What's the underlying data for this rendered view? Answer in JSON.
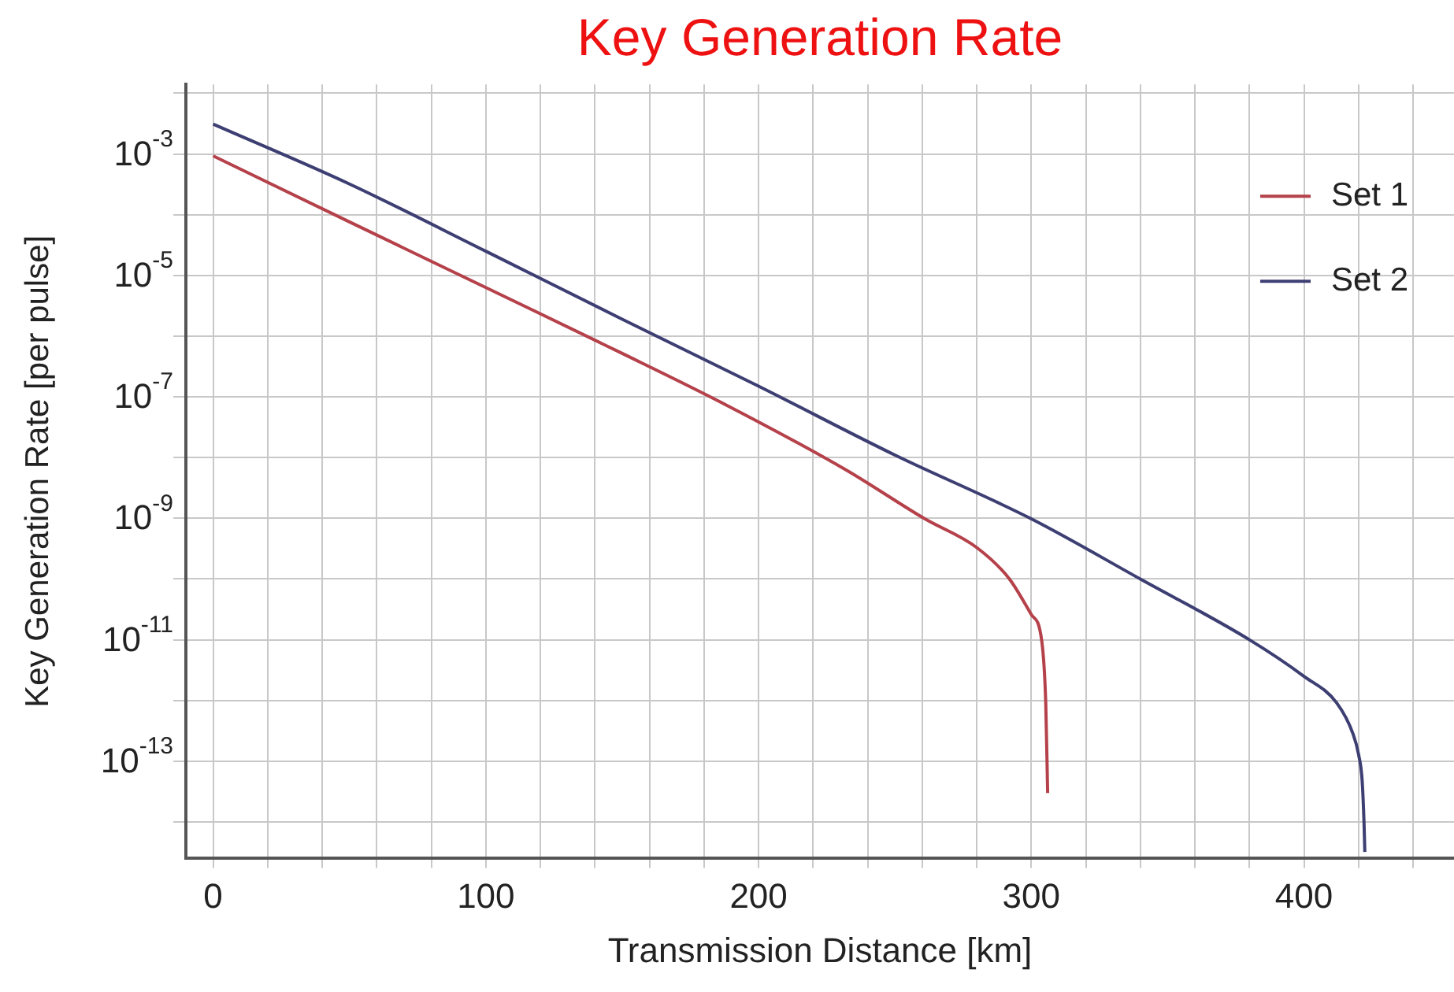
{
  "chart_data": {
    "type": "line",
    "title": "Key Generation Rate",
    "xlabel": "Transmission Distance [km]",
    "ylabel": "Key Generation Rate [per pulse]",
    "log": "y",
    "grid": true,
    "legend": "top right",
    "marker": "none",
    "line_style": "solid",
    "xlim": [
      -10,
      455
    ],
    "xticks": [
      0,
      {
        "value": 20,
        "label": null
      },
      {
        "value": 40,
        "label": null
      },
      {
        "value": 60,
        "label": null
      },
      {
        "value": 80,
        "label": null
      },
      100,
      {
        "value": 120,
        "label": null
      },
      {
        "value": 140,
        "label": null
      },
      {
        "value": 160,
        "label": null
      },
      {
        "value": 180,
        "label": null
      },
      200,
      {
        "value": 220,
        "label": null
      },
      {
        "value": 240,
        "label": null
      },
      {
        "value": 260,
        "label": null
      },
      {
        "value": 280,
        "label": null
      },
      300,
      {
        "value": 320,
        "label": null
      },
      {
        "value": 340,
        "label": null
      },
      {
        "value": 360,
        "label": null
      },
      {
        "value": 380,
        "label": null
      },
      400,
      {
        "value": 420,
        "label": null
      },
      {
        "value": 440,
        "label": null
      }
    ],
    "ylim": [
      2.5e-15,
      0.014
    ],
    "yticks": [
      {
        "value": 0.01,
        "label": null
      },
      {
        "value": 0.001,
        "label": "10$^{-3}$"
      },
      {
        "value": 0.0001,
        "label": null
      },
      {
        "value": 1e-05,
        "label": "10$^{-5}$"
      },
      {
        "value": 1e-06,
        "label": null
      },
      {
        "value": 1e-07,
        "label": "10$^{-7}$"
      },
      {
        "value": 1e-08,
        "label": null
      },
      {
        "value": 1e-09,
        "label": "10$^{-9}$"
      },
      {
        "value": 1e-10,
        "label": null
      },
      {
        "value": 1e-11,
        "label": "10$^{-11}$"
      },
      {
        "value": 1e-12,
        "label": null
      },
      {
        "value": 1e-13,
        "label": "10$^{-13}$"
      },
      {
        "value": 1e-14,
        "label": null
      }
    ],
    "series": [
      {
        "name": "Set 1",
        "color": "#b5414a",
        "x": [
          0,
          50,
          100,
          150,
          188,
          232,
          261,
          280,
          292,
          300,
          303.8,
          305.3,
          306
        ],
        "values": [
          0.00093,
          7.6e-05,
          6.3e-06,
          5.2e-07,
          7.4e-08,
          6.3e-09,
          9.8e-10,
          3.3e-10,
          1e-10,
          2.6e-11,
          9.8e-12,
          9.1e-13,
          3e-14
        ]
      },
      {
        "name": "Set 2",
        "color": "#3d3f73",
        "x": [
          0,
          50,
          100,
          150,
          200,
          250,
          300,
          340,
          380,
          400,
          412,
          418,
          420,
          421.3,
          422,
          422.3
        ],
        "values": [
          0.0031,
          0.00032,
          2.5e-05,
          1.9e-06,
          1.5e-07,
          1.1e-08,
          9.8e-10,
          1e-10,
          1e-11,
          2.5e-12,
          9.1e-13,
          2.8e-13,
          1.3e-13,
          4.9e-14,
          1e-14,
          3.2e-15
        ]
      }
    ]
  }
}
